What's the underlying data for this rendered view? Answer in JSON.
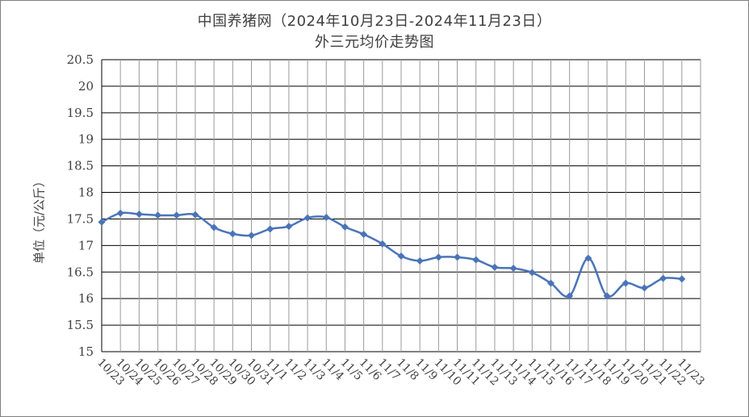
{
  "chart_data": {
    "type": "line",
    "title": "中国养猪网（2024年10月23日-2024年11月23日）",
    "subtitle": "外三元均价走势图",
    "xlabel": "",
    "ylabel": "单位（元/公斤）",
    "ylim": [
      15,
      20.5
    ],
    "yticks": [
      "15",
      "15.5",
      "16",
      "16.5",
      "17",
      "17.5",
      "18",
      "18.5",
      "19",
      "19.5",
      "20",
      "20.5"
    ],
    "grid": true,
    "line_color": "#4a74b8",
    "categories": [
      "10/23",
      "10/24",
      "10/25",
      "10/26",
      "10/27",
      "10/28",
      "10/29",
      "10/30",
      "10/31",
      "11/1",
      "11/2",
      "11/3",
      "11/4",
      "11/5",
      "11/6",
      "11/7",
      "11/8",
      "11/9",
      "11/10",
      "11/11",
      "11/12",
      "11/13",
      "11/14",
      "11/15",
      "11/16",
      "11/17",
      "11/18",
      "11/19",
      "11/20",
      "11/21",
      "11/22",
      "11/23"
    ],
    "values": [
      17.44,
      17.61,
      17.59,
      17.57,
      17.57,
      17.58,
      17.34,
      17.22,
      17.19,
      17.31,
      17.36,
      17.52,
      17.53,
      17.35,
      17.21,
      17.03,
      16.8,
      16.71,
      16.78,
      16.78,
      16.73,
      16.59,
      16.57,
      16.49,
      16.29,
      16.05,
      16.76,
      16.05,
      16.29,
      16.2,
      16.38,
      16.37
    ]
  }
}
